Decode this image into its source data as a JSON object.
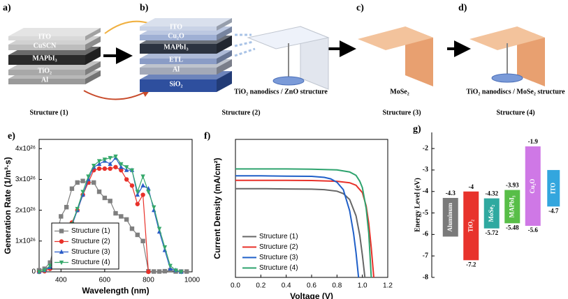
{
  "diagram": {
    "panel_labels": [
      "a)",
      "b)",
      "c)",
      "d)"
    ],
    "stack_a": [
      "ITO",
      "CuSCN",
      "MAPbI₃",
      "TiO₂",
      "Al"
    ],
    "stack_b": [
      "ITO",
      "Cu₂O",
      "MAPbI₃",
      "ETL",
      "Al",
      "SiO₂"
    ],
    "captions": [
      "TiO₂ nanodiscs / ZnO structure",
      "MoSe₂",
      "TiO₂ nanodiscs / MoSe₂ structure"
    ],
    "structures": [
      "Structure (1)",
      "Structure (2)",
      "Structure (3)",
      "Structure (4)"
    ]
  },
  "chart_data": [
    {
      "type": "line",
      "panel": "e)",
      "x_label": "Wavelength (nm)",
      "y_label": "Generation Rate (1/m³·s)",
      "x": [
        300,
        325,
        350,
        375,
        400,
        425,
        450,
        475,
        500,
        525,
        550,
        575,
        600,
        625,
        650,
        675,
        700,
        725,
        750,
        775,
        800,
        825,
        850,
        875,
        900,
        925,
        950,
        975
      ],
      "series": [
        {
          "name": "Structure (1)",
          "color": "#7f7f7f",
          "marker": "square",
          "values": [
            5e+24,
            1e+25,
            3e+25,
            1e+26,
            1.8e+26,
            2.1e+26,
            2.7e+26,
            2.9e+26,
            2.95e+26,
            2.9e+26,
            2.9e+26,
            2.6e+26,
            2.4e+26,
            2.3e+26,
            1.9e+26,
            1.8e+26,
            1.7e+26,
            1.4e+26,
            1.2e+26,
            1e+26,
            2e+24,
            1e+24,
            1e+24,
            2e+24,
            5e+24,
            1e+24,
            1e+24,
            1e+24
          ]
        },
        {
          "name": "Structure (2)",
          "color": "#e8312a",
          "marker": "circle",
          "values": [
            0,
            2e+24,
            1e+25,
            3e+25,
            6e+25,
            1.1e+26,
            1.6e+26,
            2e+26,
            2.5e+26,
            2.9e+26,
            3.3e+26,
            3.35e+26,
            3.35e+26,
            3.35e+26,
            3.4e+26,
            3.3e+26,
            3e+26,
            2.8e+26,
            2.2e+26,
            2.5e+26,
            0,
            null,
            null,
            null,
            null,
            null,
            null,
            null
          ]
        },
        {
          "name": "Structure (3)",
          "color": "#2a5cc8",
          "marker": "triangle",
          "values": [
            0,
            5e+24,
            1.5e+25,
            4e+25,
            7e+25,
            1e+26,
            1.5e+26,
            2e+26,
            2.5e+26,
            3e+26,
            3.4e+26,
            3.5e+26,
            3.6e+26,
            3.5e+26,
            3.7e+26,
            3.4e+26,
            3.3e+26,
            3.3e+26,
            2.5e+26,
            2.8e+26,
            2.7e+26,
            2e+26,
            1.3e+26,
            7e+25,
            1e+25,
            5e+24,
            0,
            null
          ]
        },
        {
          "name": "Structure (4)",
          "color": "#35a86a",
          "marker": "triangle-down",
          "values": [
            0,
            5e+24,
            2e+25,
            4.5e+25,
            7.5e+25,
            1.05e+26,
            1.55e+26,
            2.05e+26,
            2.6e+26,
            3.1e+26,
            3.45e+26,
            3.6e+26,
            3.65e+26,
            3.7e+26,
            3.75e+26,
            3.5e+26,
            3.4e+26,
            3.3e+26,
            2.6e+26,
            3.1e+26,
            2.6e+26,
            2.1e+26,
            1.4e+26,
            8e+25,
            2e+25,
            5e+24,
            0,
            null
          ]
        }
      ],
      "xlim": [
        300,
        1000
      ],
      "xticks": [
        400,
        600,
        800,
        1000
      ],
      "ylim": [
        0,
        4.3e+26
      ],
      "yticks": [
        0,
        {
          "value": 1e+26,
          "label": "1x10²⁶"
        },
        {
          "value": 2e+26,
          "label": "2x10²⁶"
        },
        {
          "value": 3e+26,
          "label": "3x10²⁶"
        },
        {
          "value": 4e+26,
          "label": "4x10²⁶"
        }
      ],
      "legend": "lower left"
    },
    {
      "type": "line",
      "panel": "f)",
      "x_label": "Voltage (V)",
      "y_label": "Current Density (mA/cm²)",
      "series": [
        {
          "name": "Structure (1)",
          "color": "#666666",
          "x": [
            0,
            0.2,
            0.4,
            0.6,
            0.7,
            0.8,
            0.85,
            0.9,
            0.95,
            0.98,
            1.0,
            1.02
          ],
          "values": [
            18,
            18,
            17.95,
            17.9,
            17.8,
            17.5,
            17.0,
            15.8,
            12.5,
            8.5,
            4.5,
            0
          ]
        },
        {
          "name": "Structure (2)",
          "color": "#e8312a",
          "x": [
            0,
            0.2,
            0.4,
            0.6,
            0.8,
            0.9,
            0.95,
            1.0,
            1.03,
            1.05,
            1.07,
            1.09
          ],
          "values": [
            19.7,
            19.7,
            19.7,
            19.65,
            19.5,
            19.2,
            18.7,
            17.2,
            14.5,
            11,
            6,
            0
          ]
        },
        {
          "name": "Structure (3)",
          "color": "#1f5fc8",
          "x": [
            0,
            0.2,
            0.4,
            0.6,
            0.7,
            0.75,
            0.8,
            0.85,
            0.9,
            0.93,
            0.95,
            0.97
          ],
          "values": [
            20.6,
            20.6,
            20.55,
            20.5,
            20.3,
            20.0,
            19.3,
            17.8,
            13.5,
            9,
            5,
            0
          ]
        },
        {
          "name": "Structure (4)",
          "color": "#2ea36e",
          "x": [
            0,
            0.2,
            0.4,
            0.6,
            0.8,
            0.9,
            0.95,
            0.98,
            1.0,
            1.03,
            1.05,
            1.07
          ],
          "values": [
            22,
            22,
            22,
            21.95,
            21.8,
            21.4,
            20.7,
            19.5,
            18.2,
            14,
            9,
            0
          ]
        }
      ],
      "xlim": [
        0,
        1.2
      ],
      "xticks": [
        {
          "value": 0,
          "label": "0.0"
        },
        0.2,
        0.4,
        0.6,
        0.8,
        {
          "value": 1,
          "label": "1.0"
        },
        1.2
      ],
      "ylim": [
        0,
        28
      ],
      "legend": "lower left"
    },
    {
      "type": "floating-bar",
      "panel": "g)",
      "y_label": "Energy Level (eV)",
      "categories": [
        "Aluminum",
        "TiO₂",
        "MoSe₂",
        "MAPbI₃",
        "Cu₂O",
        "ITO"
      ],
      "tops": [
        -4.3,
        -4,
        -4.32,
        -3.93,
        -1.9,
        -3.0
      ],
      "bottoms": [
        -6.1,
        -7.2,
        -5.72,
        -5.48,
        -5.6,
        -4.7
      ],
      "top_labels": [
        "-4.3",
        "-4",
        "-4.32",
        "-3.93",
        "-1.9",
        null
      ],
      "bottom_labels": [
        null,
        "-7.2",
        "-5.72",
        "-5.48",
        "-5.6",
        "-4.7"
      ],
      "colors": [
        "#7a7a7a",
        "#e8332c",
        "#2fa9a0",
        "#58be48",
        "#cf78e6",
        "#33a6de"
      ],
      "ylim": [
        -8,
        -1.25
      ],
      "yticks": [
        -2,
        -3,
        -4,
        -5,
        -6,
        -7,
        -8
      ]
    }
  ]
}
